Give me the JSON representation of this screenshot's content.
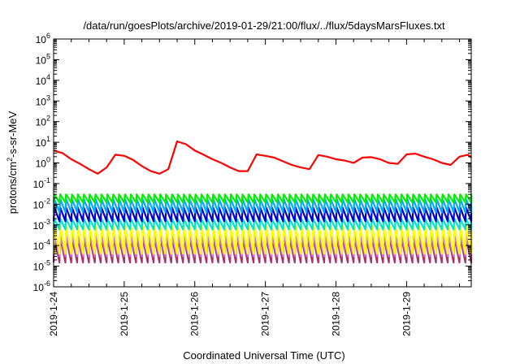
{
  "chart_data": {
    "type": "line",
    "title": "/data/run/goesPlots/archive/2019-01-29/21:00/flux/../flux/5daysMarsFluxes.txt",
    "xlabel": "Coordinated Universal Time (UTC)",
    "ylabel": {
      "pre": "protons/cm",
      "sup": "2",
      "post": "-s-sr-MeV"
    },
    "y_scale": "log",
    "ylim": [
      1e-06,
      1000000.0
    ],
    "y_ticks": [
      {
        "exp": "-6",
        "value": 1e-06
      },
      {
        "exp": "-5",
        "value": 1e-05
      },
      {
        "exp": "-4",
        "value": 0.0001
      },
      {
        "exp": "-3",
        "value": 0.001
      },
      {
        "exp": "-2",
        "value": 0.01
      },
      {
        "exp": "-1",
        "value": 0.1
      },
      {
        "exp": "0",
        "value": 1
      },
      {
        "exp": "1",
        "value": 10
      },
      {
        "exp": "2",
        "value": 100
      },
      {
        "exp": "3",
        "value": 1000
      },
      {
        "exp": "4",
        "value": 10000
      },
      {
        "exp": "5",
        "value": 100000
      },
      {
        "exp": "6",
        "value": 1000000
      }
    ],
    "y_tick_base": "10",
    "xlim": [
      "2019-01-24T00:00",
      "2019-01-29T22:00"
    ],
    "x_tick_labels": [
      "2019-1-24",
      "2019-1-25",
      "2019-1-26",
      "2019-1-27",
      "2019-1-28",
      "2019-1-29"
    ],
    "grid": false,
    "legend": "none",
    "series": [
      {
        "color": "#ff0000",
        "x": [
          "2019-01-24T00:00",
          "2019-01-24T03:00",
          "2019-01-24T06:00",
          "2019-01-24T09:00",
          "2019-01-24T12:00",
          "2019-01-24T15:00",
          "2019-01-24T18:00",
          "2019-01-24T21:00",
          "2019-01-25T00:00",
          "2019-01-25T03:00",
          "2019-01-25T06:00",
          "2019-01-25T09:00",
          "2019-01-25T12:00",
          "2019-01-25T15:00",
          "2019-01-25T18:00",
          "2019-01-25T21:00",
          "2019-01-26T00:00",
          "2019-01-26T03:00",
          "2019-01-26T06:00",
          "2019-01-26T09:00",
          "2019-01-26T12:00",
          "2019-01-26T15:00",
          "2019-01-26T18:00",
          "2019-01-26T21:00",
          "2019-01-27T00:00",
          "2019-01-27T03:00",
          "2019-01-27T06:00",
          "2019-01-27T09:00",
          "2019-01-27T12:00",
          "2019-01-27T15:00",
          "2019-01-27T18:00",
          "2019-01-27T21:00",
          "2019-01-28T00:00",
          "2019-01-28T03:00",
          "2019-01-28T06:00",
          "2019-01-28T09:00",
          "2019-01-28T12:00",
          "2019-01-28T15:00",
          "2019-01-28T18:00",
          "2019-01-28T21:00",
          "2019-01-29T00:00",
          "2019-01-29T03:00",
          "2019-01-29T06:00",
          "2019-01-29T09:00",
          "2019-01-29T12:00",
          "2019-01-29T15:00",
          "2019-01-29T18:00",
          "2019-01-29T21:00",
          "2019-01-29T22:00"
        ],
        "y": [
          4,
          3,
          1.5,
          0.9,
          0.5,
          0.3,
          0.6,
          2.5,
          2.2,
          1.4,
          0.7,
          0.4,
          0.3,
          0.5,
          11,
          8,
          4,
          2.5,
          1.5,
          1,
          0.6,
          0.4,
          0.4,
          2.6,
          2.2,
          1.8,
          1.2,
          0.8,
          0.6,
          0.5,
          2.4,
          2,
          1.5,
          1.3,
          1,
          1.8,
          1.9,
          1.5,
          1,
          0.9,
          2.6,
          2.8,
          2,
          1.5,
          1,
          0.8,
          2,
          2.5,
          1.8
        ]
      },
      {
        "color": "#00ee00",
        "pattern": "sawtooth",
        "spikes_per_day": 12,
        "range": [
          0.012,
          0.03
        ]
      },
      {
        "color": "#00aaff",
        "pattern": "sawtooth",
        "spikes_per_day": 12,
        "range": [
          0.004,
          0.018
        ]
      },
      {
        "color": "#0000cc",
        "pattern": "sawtooth",
        "spikes_per_day": 12,
        "range": [
          0.0015,
          0.007
        ]
      },
      {
        "color": "#00e5c8",
        "pattern": "sawtooth",
        "spikes_per_day": 12,
        "range": [
          0.0006,
          0.002
        ]
      },
      {
        "color": "#ffff00",
        "pattern": "sawtooth",
        "spikes_per_day": 12,
        "range": [
          4e-05,
          0.0009
        ]
      },
      {
        "color": "#cc66ff",
        "pattern": "sawtooth",
        "spikes_per_day": 12,
        "range": [
          3e-05,
          0.0003
        ]
      },
      {
        "color": "#aa3366",
        "pattern": "sawtooth",
        "spikes_per_day": 12,
        "range": [
          1.5e-05,
          0.00025
        ]
      }
    ]
  }
}
